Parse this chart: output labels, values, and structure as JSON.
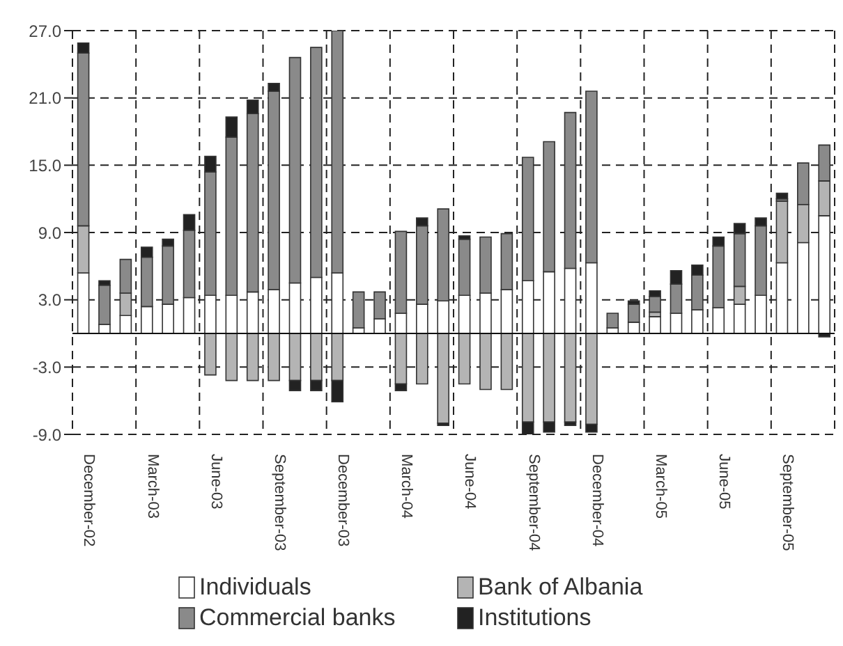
{
  "chart_data": {
    "type": "bar",
    "stacked": true,
    "categories": [
      "December-02",
      null,
      null,
      "March-03",
      null,
      null,
      "June-03",
      null,
      null,
      "September-03",
      null,
      null,
      "December-03",
      null,
      null,
      "March-04",
      null,
      null,
      "June-04",
      null,
      null,
      "September-04",
      null,
      null,
      "December-04",
      null,
      null,
      "March-05",
      null,
      null,
      "June-05",
      null,
      null,
      "September-05",
      null,
      null
    ],
    "series": [
      {
        "name": "Individuals",
        "color": "#ffffff",
        "values": [
          5.4,
          0.8,
          1.6,
          2.4,
          2.6,
          3.2,
          3.4,
          3.4,
          3.7,
          3.9,
          4.5,
          5.0,
          5.4,
          0.5,
          1.3,
          1.8,
          2.6,
          2.9,
          3.4,
          3.6,
          3.9,
          4.7,
          5.5,
          5.8,
          6.3,
          0.5,
          1.0,
          1.5,
          1.8,
          2.1,
          2.3,
          2.6,
          3.4,
          6.3,
          8.1,
          10.5
        ]
      },
      {
        "name": "Bank of Albania",
        "color": "#b4b4b4",
        "values": [
          4.2,
          null,
          2.0,
          null,
          null,
          null,
          -3.7,
          -4.2,
          -4.2,
          -4.2,
          -4.2,
          -4.2,
          -4.2,
          null,
          null,
          -4.5,
          -4.5,
          -8.0,
          -4.5,
          -5.0,
          -5.0,
          -7.9,
          -7.9,
          -7.9,
          -8.1,
          null,
          null,
          0.4,
          null,
          null,
          null,
          1.6,
          null,
          5.5,
          3.4,
          3.1
        ]
      },
      {
        "name": "Commercial banks",
        "color": "#8a8a8a",
        "values": [
          15.4,
          3.5,
          3.0,
          4.4,
          5.2,
          6.0,
          11.0,
          14.1,
          15.9,
          17.7,
          20.1,
          20.5,
          21.6,
          3.2,
          2.4,
          7.3,
          7.0,
          8.2,
          5.0,
          5.0,
          5.0,
          11.0,
          11.6,
          13.9,
          15.3,
          1.3,
          1.6,
          1.4,
          2.6,
          3.1,
          5.5,
          4.7,
          6.2,
          0.2,
          3.7,
          3.2
        ]
      },
      {
        "name": "Institutions",
        "color": "#222222",
        "values": [
          0.9,
          0.4,
          null,
          0.9,
          0.6,
          1.4,
          1.4,
          1.8,
          1.2,
          0.7,
          -0.9,
          -0.9,
          -1.9,
          null,
          null,
          -0.6,
          0.7,
          -0.2,
          0.3,
          null,
          null,
          -1.1,
          -0.9,
          -0.3,
          -0.7,
          null,
          0.3,
          0.5,
          1.2,
          0.9,
          0.8,
          0.9,
          0.7,
          0.5,
          null,
          -0.3
        ]
      }
    ],
    "ylim": [
      -9,
      27
    ],
    "yticks": [
      {
        "value": 27,
        "label": "27.0"
      },
      {
        "value": 21,
        "label": "21.0"
      },
      {
        "value": 15,
        "label": "15.0"
      },
      {
        "value": 9,
        "label": "9.0"
      },
      {
        "value": 3,
        "label": "3.0"
      },
      {
        "value": -3,
        "label": "-3.0"
      },
      {
        "value": -9,
        "label": "-9.0"
      }
    ],
    "ref_lines": [
      {
        "axis": "y",
        "value": 0
      }
    ],
    "grid": true,
    "legend": "bottom"
  }
}
